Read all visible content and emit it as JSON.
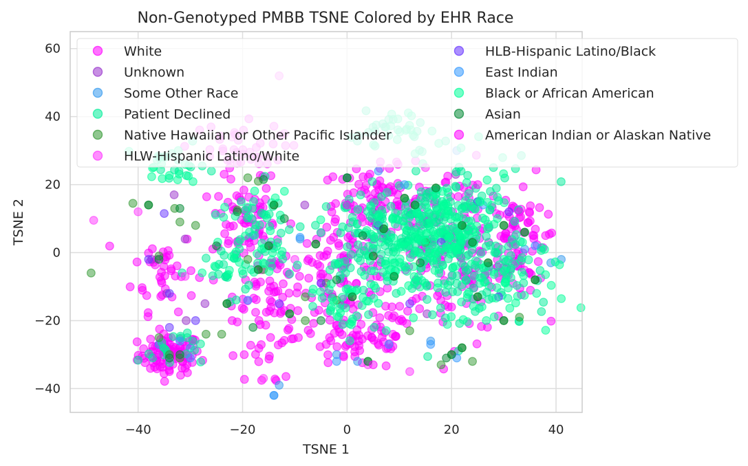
{
  "chart_data": {
    "type": "scatter",
    "title": "Non-Genotyped PMBB TSNE Colored by EHR Race",
    "xlabel": "TSNE 1",
    "ylabel": "TSNE 2",
    "xlim": [
      -53,
      45
    ],
    "ylim": [
      -47,
      65
    ],
    "xticks": [
      -40,
      -20,
      0,
      20,
      40
    ],
    "yticks": [
      -40,
      -20,
      0,
      20,
      40,
      60
    ],
    "xtick_labels": [
      "−40",
      "−20",
      "0",
      "20",
      "40"
    ],
    "ytick_labels": [
      "−40",
      "−20",
      "0",
      "20",
      "40",
      "60"
    ],
    "grid": true,
    "legend_position": "upper right, two columns",
    "series": [
      {
        "name": "White",
        "color": "#ff00ff",
        "clusters": [
          {
            "cx": -34,
            "cy": -30,
            "sx": 3,
            "sy": 3,
            "n": 90
          },
          {
            "cx": -20,
            "cy": 10,
            "sx": 3,
            "sy": 6,
            "n": 60
          },
          {
            "cx": -35,
            "cy": -5,
            "sx": 3,
            "sy": 6,
            "n": 40
          },
          {
            "cx": -14,
            "cy": -10,
            "sx": 4,
            "sy": 8,
            "n": 70
          },
          {
            "cx": 5,
            "cy": 15,
            "sx": 5,
            "sy": 5,
            "n": 80
          },
          {
            "cx": 2,
            "cy": -25,
            "sx": 6,
            "sy": 5,
            "n": 70
          },
          {
            "cx": 0,
            "cy": -5,
            "sx": 5,
            "sy": 7,
            "n": 80
          },
          {
            "cx": 20,
            "cy": 0,
            "sx": 8,
            "sy": 12,
            "n": 190
          },
          {
            "cx": 32,
            "cy": 5,
            "sx": 3,
            "sy": 8,
            "n": 70
          },
          {
            "cx": -22,
            "cy": 30,
            "sx": 5,
            "sy": 4,
            "n": 40
          },
          {
            "cx": -16,
            "cy": -30,
            "sx": 3,
            "sy": 5,
            "n": 20
          }
        ]
      },
      {
        "name": "Unknown",
        "color": "#9933cc",
        "points": [
          [
            -37.4,
            -2
          ],
          [
            -34.5,
            -12
          ],
          [
            -33.1,
            17
          ],
          [
            -31,
            4
          ],
          [
            -27.2,
            -15
          ],
          [
            -30.8,
            -20
          ],
          [
            -2.8,
            -13
          ],
          [
            13.2,
            -8
          ],
          [
            20.8,
            23
          ],
          [
            -8.1,
            14
          ],
          [
            4.9,
            12
          ],
          [
            27.1,
            3
          ],
          [
            15.3,
            -18
          ]
        ]
      },
      {
        "name": "Some Other Race",
        "color": "#3399ee",
        "points": [
          [
            -14,
            -42
          ],
          [
            -13,
            -39
          ],
          [
            -30,
            -28
          ],
          [
            -36,
            -27
          ],
          [
            -18,
            5
          ],
          [
            -9,
            4
          ],
          [
            16,
            -26
          ],
          [
            21,
            30
          ],
          [
            0,
            22
          ],
          [
            12,
            11
          ],
          [
            34,
            1
          ],
          [
            39,
            -3
          ],
          [
            41,
            -2
          ],
          [
            2,
            -32
          ],
          [
            -2,
            -30
          ]
        ]
      },
      {
        "name": "Patient Declined",
        "color": "#00ee99",
        "clusters": [
          {
            "cx": 10,
            "cy": 5,
            "sx": 5,
            "sy": 6,
            "n": 80
          },
          {
            "cx": 20,
            "cy": 10,
            "sx": 8,
            "sy": 9,
            "n": 120
          },
          {
            "cx": 25,
            "cy": -8,
            "sx": 7,
            "sy": 8,
            "n": 70
          },
          {
            "cx": 2,
            "cy": -2,
            "sx": 4,
            "sy": 8,
            "n": 40
          },
          {
            "cx": -15,
            "cy": 8,
            "sx": 3,
            "sy": 6,
            "n": 25
          },
          {
            "cx": -22,
            "cy": -5,
            "sx": 4,
            "sy": 4,
            "n": 25
          },
          {
            "cx": -34,
            "cy": -28,
            "sx": 3,
            "sy": 3,
            "n": 20
          },
          {
            "cx": 8,
            "cy": 35,
            "sx": 4,
            "sy": 3,
            "n": 20
          },
          {
            "cx": -33,
            "cy": 25,
            "sx": 3,
            "sy": 3,
            "n": 15
          }
        ]
      },
      {
        "name": "Native Hawaiian or Other Pacific Islander",
        "color": "#339933",
        "points": [
          [
            -49,
            -6
          ],
          [
            -41,
            14.5
          ],
          [
            -38,
            14
          ],
          [
            -36,
            -1
          ],
          [
            -34,
            -30
          ],
          [
            -32,
            -31
          ],
          [
            -32,
            9
          ],
          [
            -29,
            8
          ],
          [
            -24,
            -24
          ],
          [
            -23,
            -15
          ],
          [
            -21,
            12.5
          ],
          [
            -19,
            -2
          ],
          [
            -17,
            -5
          ],
          [
            -16,
            -5
          ],
          [
            -15,
            2
          ],
          [
            -14,
            14
          ],
          [
            -11,
            -18
          ],
          [
            -8,
            -20
          ],
          [
            -6,
            2.5
          ],
          [
            -4,
            -9
          ],
          [
            -2,
            -14
          ],
          [
            0,
            22
          ],
          [
            1,
            -13
          ],
          [
            4,
            -32
          ],
          [
            5,
            -1
          ],
          [
            7,
            7
          ],
          [
            9,
            -7
          ],
          [
            11,
            16
          ],
          [
            13,
            14
          ],
          [
            17,
            19
          ],
          [
            20,
            -30
          ],
          [
            22,
            -28
          ],
          [
            22,
            8
          ],
          [
            24,
            3
          ],
          [
            25,
            -13
          ],
          [
            27,
            -3
          ],
          [
            30,
            8
          ],
          [
            30,
            -20
          ],
          [
            34,
            6
          ],
          [
            36,
            -8
          ],
          [
            -36,
            -25
          ],
          [
            -33,
            13
          ],
          [
            -27,
            -24
          ],
          [
            -8,
            -13
          ],
          [
            12,
            -23
          ],
          [
            18,
            -33
          ],
          [
            24,
            -32
          ],
          [
            33,
            -19
          ],
          [
            -19,
            22
          ],
          [
            -17,
            21
          ],
          [
            15,
            3
          ]
        ]
      },
      {
        "name": "HLW-Hispanic Latino/White",
        "color": "#ff33ff",
        "points": [
          [
            -48.5,
            9.5
          ],
          [
            -31,
            -7
          ],
          [
            -22,
            34
          ],
          [
            -16,
            -37
          ],
          [
            -13,
            52
          ],
          [
            -12,
            35
          ],
          [
            4,
            -33
          ],
          [
            12,
            -35
          ],
          [
            -40,
            12
          ],
          [
            29,
            -7
          ],
          [
            -10,
            -2
          ],
          [
            15,
            25
          ],
          [
            3,
            9
          ]
        ]
      },
      {
        "name": "HLB-Hispanic Latino/Black",
        "color": "#6633ff",
        "points": [
          [
            -38,
            -2
          ],
          [
            -35,
            11.5
          ],
          [
            -29,
            -20
          ],
          [
            -34,
            -12
          ],
          [
            -13,
            -15
          ],
          [
            -5,
            -9
          ],
          [
            6,
            8
          ],
          [
            12,
            -15
          ],
          [
            18,
            3
          ],
          [
            25,
            15
          ],
          [
            29,
            -13
          ],
          [
            -34,
            -22
          ],
          [
            31,
            12
          ]
        ]
      },
      {
        "name": "East Indian",
        "color": "#3399ff",
        "points": [
          [
            -14,
            -42
          ],
          [
            -32,
            -26
          ],
          [
            -30,
            -31
          ],
          [
            -19,
            -14
          ],
          [
            -2,
            -32
          ],
          [
            8,
            -27
          ],
          [
            21,
            -31
          ],
          [
            16,
            -27
          ],
          [
            26,
            14
          ],
          [
            36,
            2
          ],
          [
            -9,
            4.5
          ],
          [
            6,
            24
          ],
          [
            11,
            20
          ]
        ]
      },
      {
        "name": "Black or African American",
        "color": "#00ff99",
        "clusters": [
          {
            "cx": 20,
            "cy": 5,
            "sx": 6,
            "sy": 10,
            "n": 140
          },
          {
            "cx": 10,
            "cy": 2,
            "sx": 5,
            "sy": 6,
            "n": 70
          },
          {
            "cx": 0,
            "cy": -12,
            "sx": 4,
            "sy": 6,
            "n": 40
          },
          {
            "cx": 28,
            "cy": -10,
            "sx": 6,
            "sy": 6,
            "n": 50
          },
          {
            "cx": -20,
            "cy": -2,
            "sx": 4,
            "sy": 4,
            "n": 30
          },
          {
            "cx": -18,
            "cy": 12,
            "sx": 3,
            "sy": 3,
            "n": 15
          },
          {
            "cx": -34,
            "cy": 25,
            "sx": 3,
            "sy": 3,
            "n": 15
          },
          {
            "cx": 10,
            "cy": 36,
            "sx": 3,
            "sy": 3,
            "n": 15
          }
        ]
      },
      {
        "name": "Asian",
        "color": "#008833",
        "points": [
          [
            -38,
            14
          ],
          [
            -36,
            -2
          ],
          [
            -34,
            -31
          ],
          [
            -32,
            -30
          ],
          [
            -23,
            -15
          ],
          [
            -21,
            12
          ],
          [
            -18,
            -22
          ],
          [
            -17,
            -5
          ],
          [
            -15,
            2
          ],
          [
            -14,
            14
          ],
          [
            -11,
            -18
          ],
          [
            -6,
            2.5
          ],
          [
            0,
            22
          ],
          [
            1,
            -13
          ],
          [
            4,
            -32
          ],
          [
            5,
            -1
          ],
          [
            7,
            7
          ],
          [
            9,
            -7
          ],
          [
            11,
            16
          ],
          [
            13,
            14
          ],
          [
            17,
            19
          ],
          [
            20,
            -30
          ],
          [
            22,
            -28
          ],
          [
            22,
            8
          ],
          [
            24,
            3
          ],
          [
            25,
            -13
          ],
          [
            27,
            -3
          ],
          [
            30,
            8
          ],
          [
            30,
            -20
          ],
          [
            34,
            6
          ],
          [
            36,
            -8
          ],
          [
            -16,
            21.5
          ],
          [
            -32,
            13
          ],
          [
            19,
            -31
          ],
          [
            -5,
            -20
          ],
          [
            -2,
            -8
          ],
          [
            3,
            5
          ],
          [
            14,
            -3
          ],
          [
            -12,
            10
          ],
          [
            -25,
            2
          ]
        ]
      },
      {
        "name": "American Indian or Alaskan Native",
        "color": "#ff00ff",
        "points": [
          [
            -36,
            -30
          ],
          [
            -34,
            -35
          ],
          [
            -31,
            -34
          ],
          [
            -17,
            28
          ],
          [
            0,
            14
          ],
          [
            5,
            -33
          ],
          [
            20,
            -16
          ],
          [
            33,
            12
          ],
          [
            -22,
            -20
          ],
          [
            10,
            -20
          ],
          [
            -4,
            -27
          ],
          [
            25,
            20
          ],
          [
            38,
            5
          ]
        ]
      }
    ]
  }
}
